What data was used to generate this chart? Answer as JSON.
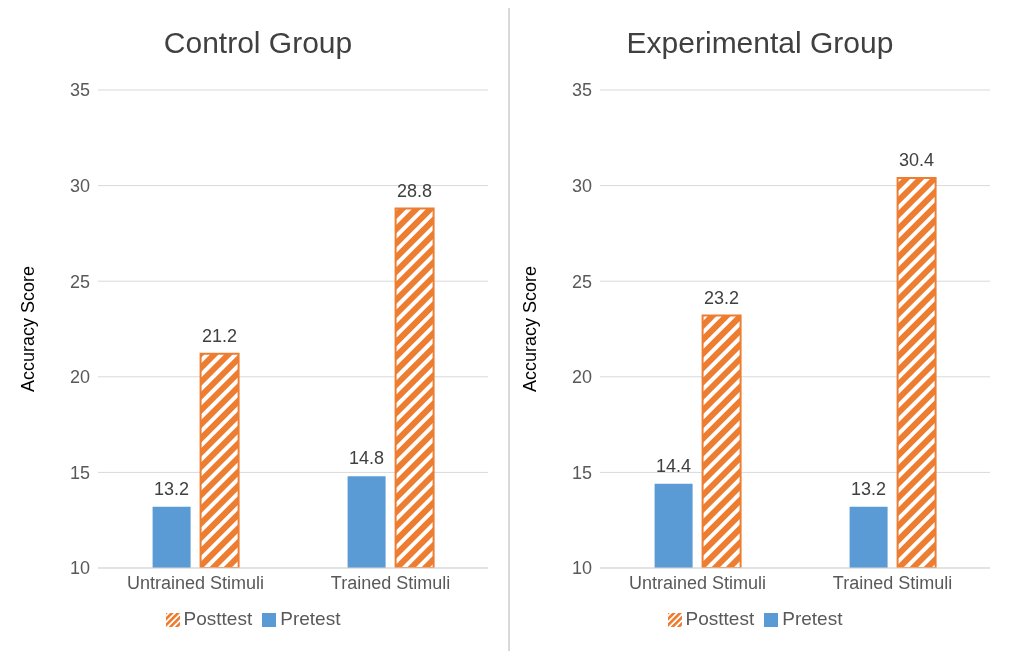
{
  "chart_data": [
    {
      "type": "bar",
      "title": "Control Group",
      "ylabel": "Accuracy Score",
      "categories": [
        "Untrained Stimuli",
        "Trained Stimuli"
      ],
      "series": [
        {
          "name": "Pretest",
          "color": "#5b9bd5",
          "values": [
            13.2,
            14.8
          ]
        },
        {
          "name": "Posttest",
          "color": "#ed7d31",
          "values": [
            21.2,
            28.8
          ]
        }
      ],
      "ylim": [
        10,
        35
      ],
      "yticks": [
        10,
        15,
        20,
        25,
        30,
        35
      ],
      "grid": "y",
      "legend": "bottom",
      "data_labels": true
    },
    {
      "type": "bar",
      "title": "Experimental Group",
      "ylabel": "Accuracy Score",
      "categories": [
        "Untrained Stimuli",
        "Trained Stimuli"
      ],
      "series": [
        {
          "name": "Pretest",
          "color": "#5b9bd5",
          "values": [
            14.4,
            13.2
          ]
        },
        {
          "name": "Posttest",
          "color": "#ed7d31",
          "values": [
            23.2,
            30.4
          ]
        }
      ],
      "ylim": [
        10,
        35
      ],
      "yticks": [
        10,
        15,
        20,
        25,
        30,
        35
      ],
      "grid": "y",
      "legend": "bottom",
      "data_labels": true
    }
  ]
}
